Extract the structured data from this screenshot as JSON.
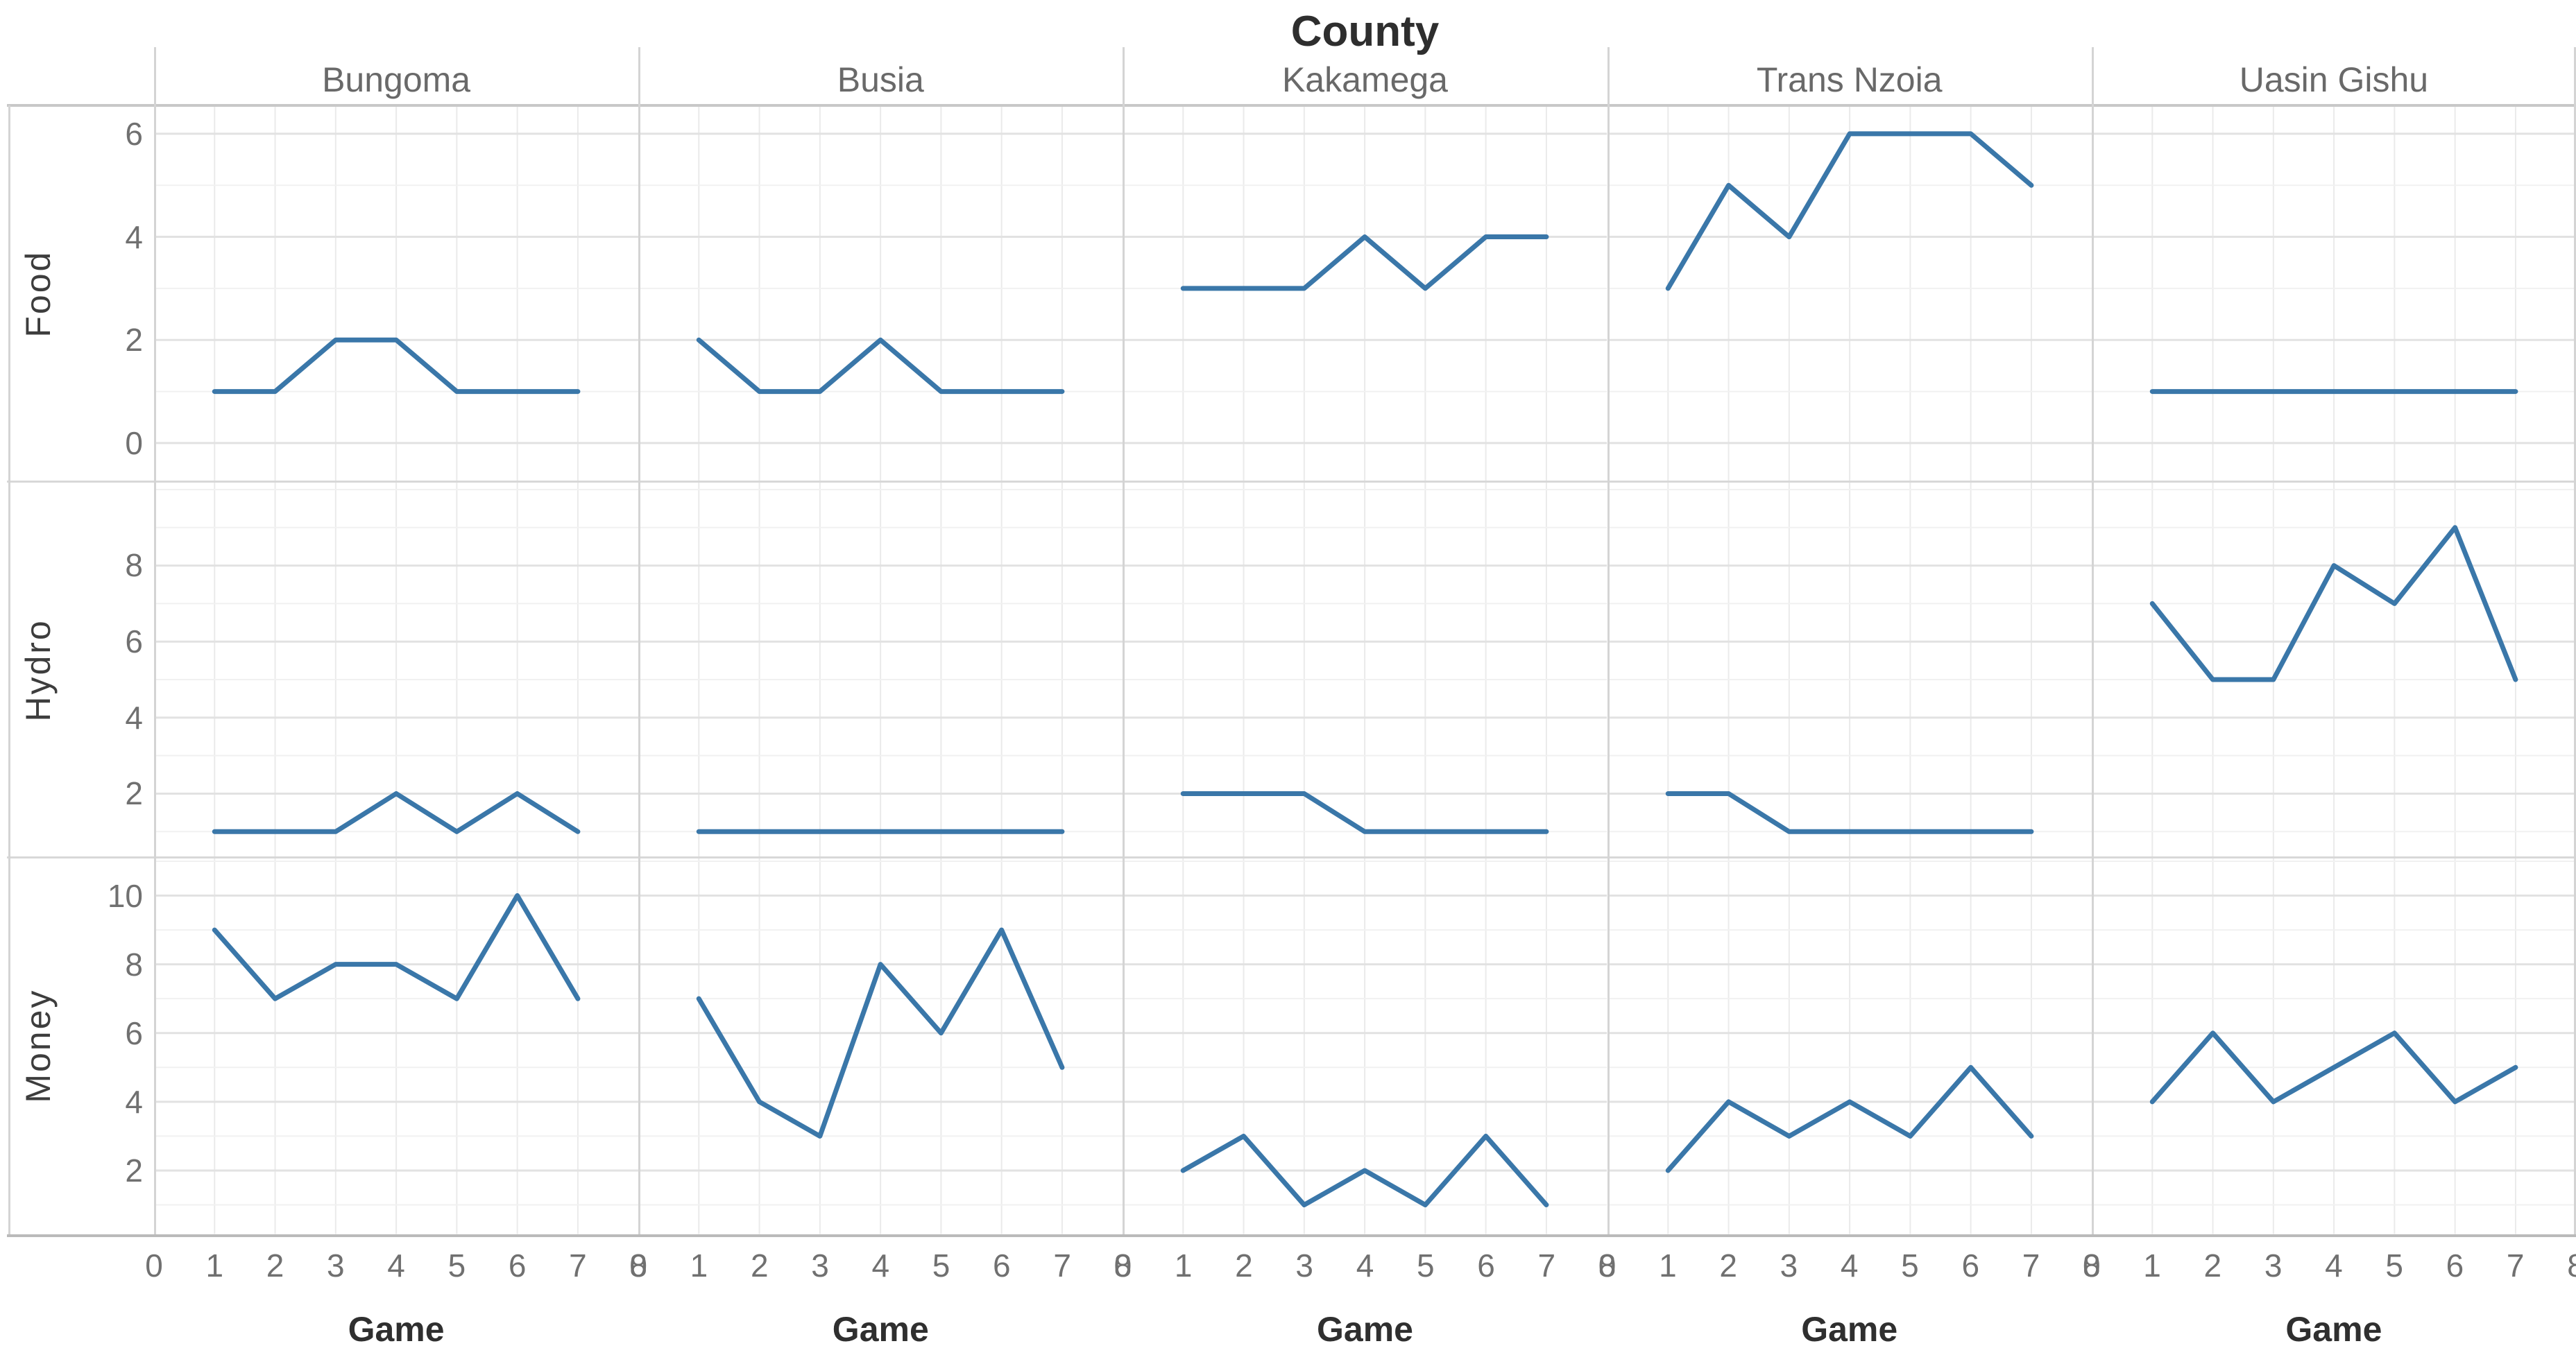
{
  "chart_data": {
    "type": "line",
    "title": "County",
    "x_label": "Game",
    "x": [
      1,
      2,
      3,
      4,
      5,
      6,
      7
    ],
    "x_ticks": [
      0,
      1,
      2,
      3,
      4,
      5,
      6,
      7,
      8
    ],
    "x_domain": [
      0,
      8
    ],
    "legend": "none",
    "grid": "on",
    "facet_columns": [
      "Bungoma",
      "Busia",
      "Kakamega",
      "Trans Nzoia",
      "Uasin Gishu"
    ],
    "facet_rows": [
      {
        "name": "Food",
        "ticks": [
          0,
          2,
          4,
          6
        ],
        "domain": [
          -0.75,
          6.55
        ],
        "series": [
          [
            1,
            1,
            2,
            2,
            1,
            1,
            1
          ],
          [
            2,
            1,
            1,
            2,
            1,
            1,
            1
          ],
          [
            3,
            3,
            3,
            4,
            3,
            4,
            4
          ],
          [
            3,
            5,
            4,
            6,
            6,
            6,
            5
          ],
          [
            1,
            1,
            1,
            1,
            1,
            1,
            1
          ]
        ]
      },
      {
        "name": "Hydro",
        "ticks": [
          2,
          4,
          6,
          8
        ],
        "domain": [
          0.3,
          10.2
        ],
        "series": [
          [
            1,
            1,
            1,
            2,
            1,
            2,
            1
          ],
          [
            1,
            1,
            1,
            1,
            1,
            1,
            1
          ],
          [
            2,
            2,
            2,
            1,
            1,
            1,
            1
          ],
          [
            2,
            2,
            1,
            1,
            1,
            1,
            1
          ],
          [
            7,
            5,
            5,
            8,
            7,
            9,
            5
          ]
        ]
      },
      {
        "name": "Money",
        "ticks": [
          2,
          4,
          6,
          8,
          10
        ],
        "domain": [
          0.15,
          11.1
        ],
        "series": [
          [
            9,
            7,
            8,
            8,
            7,
            10,
            7
          ],
          [
            7,
            4,
            3,
            8,
            6,
            9,
            5
          ],
          [
            2,
            3,
            1,
            2,
            1,
            3,
            1
          ],
          [
            2,
            4,
            3,
            4,
            3,
            5,
            3
          ],
          [
            4,
            6,
            4,
            5,
            6,
            4,
            5
          ]
        ]
      }
    ],
    "line_color": "#3a77a9",
    "grid_major_color": "#e2e2e2",
    "grid_minor_color": "#f1f1f1",
    "separator_color": "#d4d4d4",
    "axis_line_color": "#bababa"
  }
}
